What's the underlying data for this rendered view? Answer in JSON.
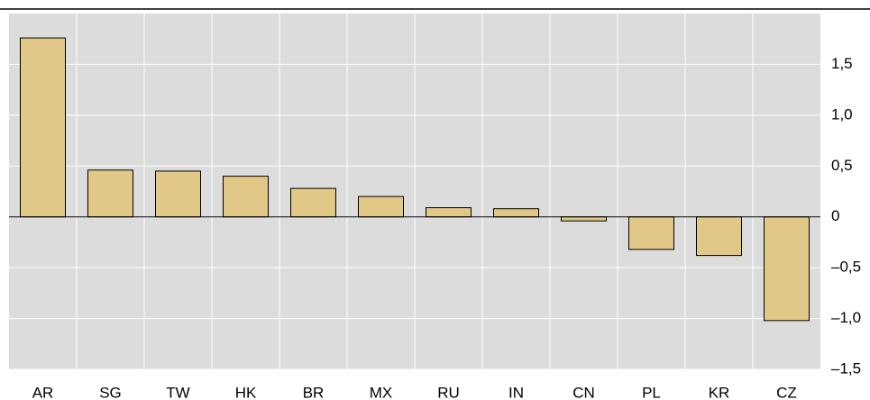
{
  "chart_data": {
    "type": "bar",
    "categories": [
      "AR",
      "SG",
      "TW",
      "HK",
      "BR",
      "MX",
      "RU",
      "IN",
      "CN",
      "PL",
      "KR",
      "CZ"
    ],
    "values": [
      1.76,
      0.46,
      0.45,
      0.4,
      0.28,
      0.2,
      0.09,
      0.08,
      -0.04,
      -0.32,
      -0.38,
      -1.02
    ],
    "color": "#e1c886",
    "ylim": [
      -1.5,
      2.0
    ],
    "yticks": [
      {
        "value": -1.5,
        "label": "–1,5"
      },
      {
        "value": -1.0,
        "label": "–1,0"
      },
      {
        "value": -0.5,
        "label": "–0,5"
      },
      0,
      {
        "value": 0.5,
        "label": "0,5"
      },
      {
        "value": 1.0,
        "label": "1,0"
      },
      {
        "value": 1.5,
        "label": "1,5"
      }
    ],
    "grid": true
  }
}
